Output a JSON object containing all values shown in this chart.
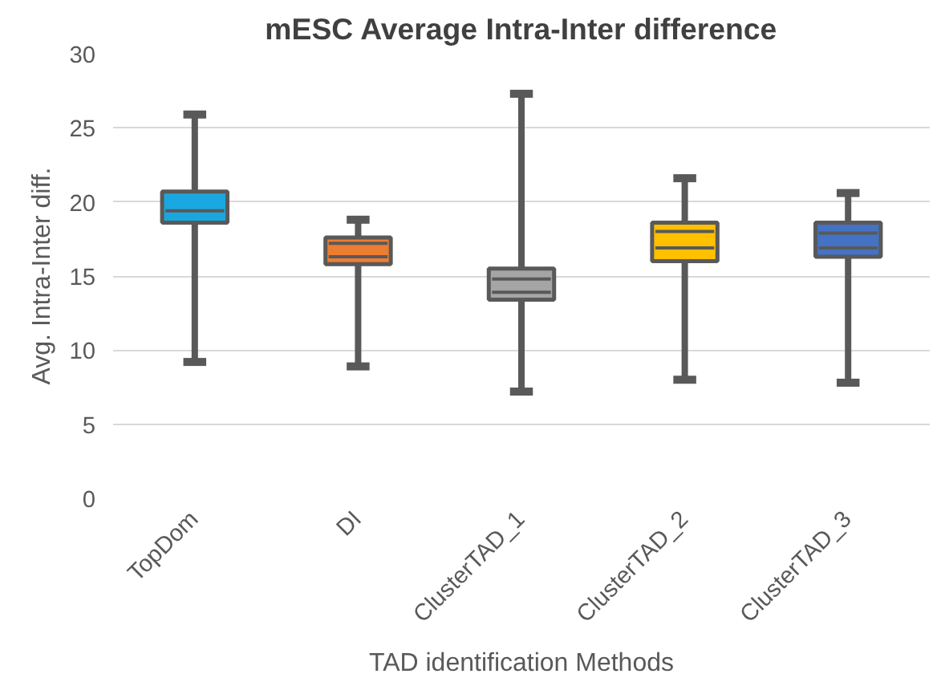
{
  "chart_data": {
    "type": "box",
    "title": "mESC Average Intra-Inter difference",
    "xlabel": "TAD identification Methods",
    "ylabel": "Avg. Intra-Inter diff.",
    "categories": [
      "TopDom",
      "DI",
      "ClusterTAD_1",
      "ClusterTAD_2",
      "ClusterTAD_3"
    ],
    "colors": [
      "#1aa7e0",
      "#ed7d31",
      "#a5a5a5",
      "#ffc000",
      "#4472c4"
    ],
    "boxes": [
      {
        "low": 9.2,
        "q1": 18.6,
        "median": 19.4,
        "q3": 20.7,
        "high": 25.9
      },
      {
        "low": 8.9,
        "q1": 15.8,
        "median": 16.3,
        "mean": 17.2,
        "q3": 17.6,
        "high": 18.8
      },
      {
        "low": 7.2,
        "q1": 13.4,
        "median": 13.9,
        "mean": 14.8,
        "q3": 15.5,
        "high": 27.3
      },
      {
        "low": 8.0,
        "q1": 16.0,
        "median": 16.9,
        "mean": 18.0,
        "q3": 18.6,
        "high": 21.6
      },
      {
        "low": 7.8,
        "q1": 16.3,
        "median": 16.9,
        "mean": 17.9,
        "q3": 18.6,
        "high": 20.6
      }
    ],
    "ylim": [
      0,
      30
    ],
    "yticks": [
      0,
      5,
      10,
      15,
      20,
      25,
      30
    ],
    "grid": "y"
  }
}
